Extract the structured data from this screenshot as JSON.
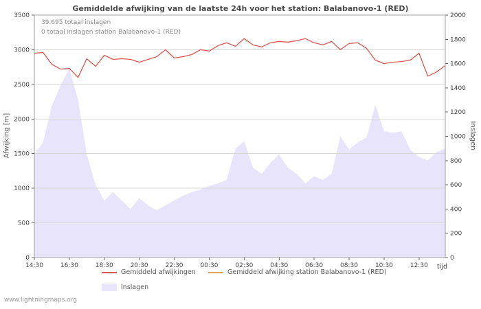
{
  "title": "Gemiddelde afwijking van de laatste 24h voor het station: Balabanovo-1 (RED)",
  "annotations": {
    "total_strikes": "39.695 totaal inslagen",
    "station_strikes": "0 totaal inslagen station Balabanovo-1 (RED)"
  },
  "watermark": "www.lightningmaps.org",
  "colors": {
    "deviation_line": "#dd5650",
    "station_line": "#e8a34e",
    "strikes_area": "#e7e4fb",
    "grid": "#d6d6d6",
    "plot_border": "#a0a0a0",
    "tick_text": "#444444"
  },
  "legend": [
    {
      "label": "Gemiddeld afwijkingen",
      "color": "#dd5650",
      "type": "line"
    },
    {
      "label": "Gemiddeld afwijking station Balabanovo-1 (RED)",
      "color": "#e8a34e",
      "type": "line"
    },
    {
      "label": "Inslagen",
      "color": "#e7e4fb",
      "type": "area"
    }
  ],
  "chart_data": {
    "type": "line+area",
    "title": "Gemiddelde afwijking van de laatste 24h voor het station: Balabanovo-1 (RED)",
    "xlabel": "tijd",
    "ylabel_left": "Afwijking  [m]",
    "ylabel_right": "Inslagen",
    "x_ticks": [
      "14:30",
      "16:30",
      "18:30",
      "20:30",
      "22:30",
      "00:30",
      "02:30",
      "04:30",
      "06:30",
      "08:30",
      "10:30",
      "12:30"
    ],
    "x_tick_every": 4,
    "left_axis": {
      "min": 0,
      "max": 3500,
      "step": 500
    },
    "right_axis": {
      "min": 0,
      "max": 2000,
      "step": 200
    },
    "grid": "horizontal",
    "legend_position": "bottom",
    "series": [
      {
        "name": "Gemiddeld afwijkingen",
        "axis": "left",
        "render": "line",
        "color": "#dd5650",
        "values": [
          2950,
          2960,
          2790,
          2720,
          2730,
          2600,
          2870,
          2760,
          2920,
          2860,
          2870,
          2860,
          2820,
          2860,
          2900,
          3000,
          2880,
          2900,
          2930,
          3000,
          2980,
          3060,
          3100,
          3050,
          3160,
          3070,
          3040,
          3100,
          3120,
          3110,
          3130,
          3160,
          3100,
          3070,
          3120,
          3000,
          3090,
          3100,
          3020,
          2850,
          2800,
          2820,
          2830,
          2850,
          2950,
          2620,
          2680,
          2770
        ]
      },
      {
        "name": "Gemiddeld afwijking station Balabanovo-1 (RED)",
        "axis": "left",
        "render": "line",
        "color": "#e8a34e",
        "values": []
      },
      {
        "name": "Inslagen",
        "axis": "right",
        "render": "area",
        "color": "#e7e4fb",
        "values": [
          850,
          950,
          1250,
          1420,
          1560,
          1300,
          850,
          600,
          470,
          540,
          470,
          400,
          490,
          430,
          390,
          430,
          470,
          510,
          540,
          560,
          590,
          610,
          640,
          900,
          960,
          740,
          690,
          780,
          850,
          740,
          690,
          610,
          670,
          640,
          690,
          1000,
          890,
          950,
          990,
          1260,
          1040,
          1030,
          1040,
          890,
          830,
          800,
          870,
          900
        ]
      }
    ]
  }
}
